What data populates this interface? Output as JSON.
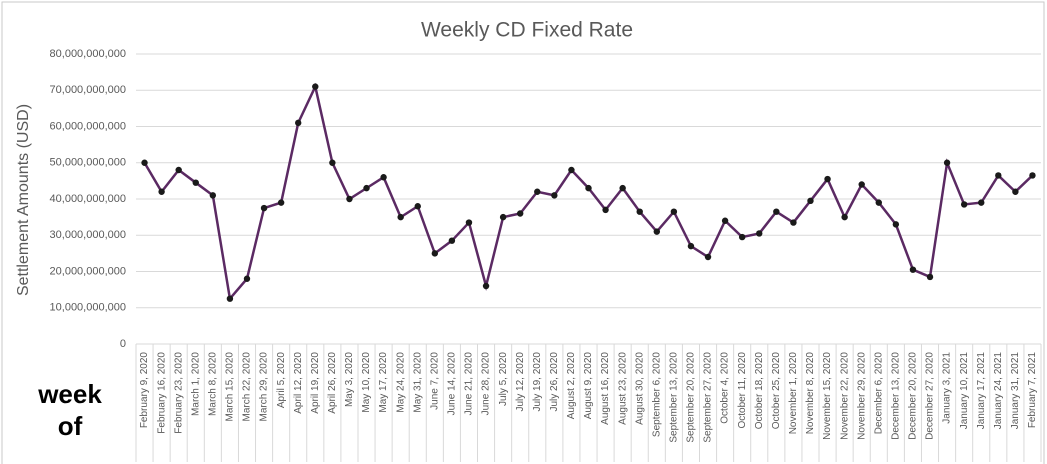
{
  "chart_data": {
    "type": "line",
    "title": "Weekly CD Fixed Rate",
    "ylabel": "Settlement Amounts (USD)",
    "xlabel": "week of",
    "color": "#5b2a63",
    "marker_color": "#1a1a1a",
    "grid": true,
    "categories": [
      "February 9, 2020",
      "February 16, 2020",
      "February 23, 2020",
      "March 1, 2020",
      "March 8, 2020",
      "March 15, 2020",
      "March 22, 2020",
      "March 29, 2020",
      "April 5, 2020",
      "April 12, 2020",
      "April 19, 2020",
      "April 26, 2020",
      "May 3, 2020",
      "May 10, 2020",
      "May 17, 2020",
      "May 24, 2020",
      "May 31, 2020",
      "June 7, 2020",
      "June 14, 2020",
      "June 21, 2020",
      "June 28, 2020",
      "July 5, 2020",
      "July 12, 2020",
      "July 19, 2020",
      "July 26, 2020",
      "August 2, 2020",
      "August 9, 2020",
      "August 16, 2020",
      "August 23, 2020",
      "August 30, 2020",
      "September 6, 2020",
      "September 13, 2020",
      "September 20, 2020",
      "September 27, 2020",
      "October 4, 2020",
      "October 11, 2020",
      "October 18, 2020",
      "October 25, 2020",
      "November 1, 2020",
      "November 8, 2020",
      "November 15, 2020",
      "November 22, 2020",
      "November 29, 2020",
      "December 6, 2020",
      "December 13, 2020",
      "December 20, 2020",
      "December 27, 2020",
      "January 3, 2021",
      "January 10, 2021",
      "January 17, 2021",
      "January 24, 2021",
      "January 31, 2021",
      "February 7, 2021"
    ],
    "values": [
      50000000000,
      42000000000,
      48000000000,
      44500000000,
      41000000000,
      12500000000,
      18000000000,
      37500000000,
      39000000000,
      61000000000,
      71000000000,
      50000000000,
      40000000000,
      43000000000,
      46000000000,
      35000000000,
      38000000000,
      25000000000,
      28500000000,
      33500000000,
      16000000000,
      35000000000,
      36000000000,
      42000000000,
      41000000000,
      48000000000,
      43000000000,
      37000000000,
      43000000000,
      36500000000,
      31000000000,
      36500000000,
      27000000000,
      24000000000,
      34000000000,
      29500000000,
      30500000000,
      36500000000,
      33500000000,
      39500000000,
      45500000000,
      35000000000,
      44000000000,
      39000000000,
      33000000000,
      20500000000,
      18500000000,
      50000000000,
      38500000000,
      39000000000,
      46500000000,
      42000000000,
      46500000000
    ],
    "ylim": [
      0,
      80000000000
    ],
    "yticks": [
      0,
      {
        "value": 10000000000,
        "label": "10,000,000,000"
      },
      {
        "value": 20000000000,
        "label": "20,000,000,000"
      },
      {
        "value": 30000000000,
        "label": "30,000,000,000"
      },
      {
        "value": 40000000000,
        "label": "40,000,000,000"
      },
      {
        "value": 50000000000,
        "label": "50,000,000,000"
      },
      {
        "value": 60000000000,
        "label": "60,000,000,000"
      },
      {
        "value": 70000000000,
        "label": "70,000,000,000"
      },
      {
        "value": 80000000000,
        "label": "80,000,000,000"
      }
    ]
  }
}
